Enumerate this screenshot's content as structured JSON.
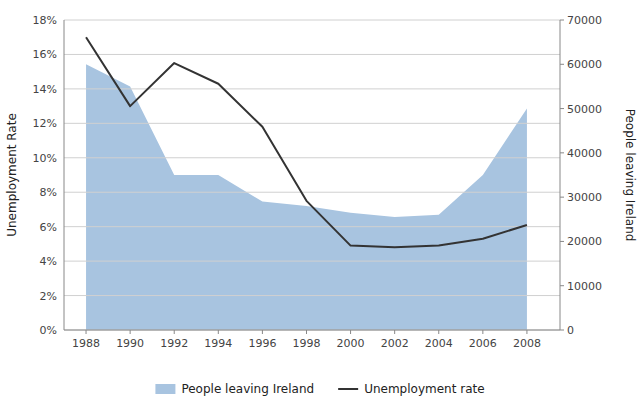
{
  "chart_data": {
    "type": "line",
    "x": [
      1988,
      1990,
      1992,
      1994,
      1996,
      1998,
      2000,
      2002,
      2004,
      2006,
      2008
    ],
    "xlim": [
      1987.0,
      2009.5
    ],
    "xticks": [
      1988,
      1990,
      1992,
      1994,
      1996,
      1998,
      2000,
      2002,
      2004,
      2006,
      2008
    ],
    "ylim": [
      0,
      18
    ],
    "yticks": [
      {
        "value": 0,
        "label": "0%"
      },
      {
        "value": 2,
        "label": "2%"
      },
      {
        "value": 4,
        "label": "4%"
      },
      {
        "value": 6,
        "label": "6%"
      },
      {
        "value": 8,
        "label": "8%"
      },
      {
        "value": 10,
        "label": "10%"
      },
      {
        "value": 12,
        "label": "12%"
      },
      {
        "value": 14,
        "label": "14%"
      },
      {
        "value": 16,
        "label": "16%"
      },
      {
        "value": 18,
        "label": "18%"
      }
    ],
    "y2lim": [
      0,
      70000
    ],
    "y2ticks": [
      0,
      10000,
      20000,
      30000,
      40000,
      50000,
      60000,
      70000
    ],
    "y_label": "Unemployment Rate",
    "y2_label": "People leaving Ireland",
    "grid": true,
    "legend": "bottom",
    "series": [
      {
        "name": "People leaving Ireland",
        "type": "area",
        "axis": "y2",
        "color": "#a8c4e0",
        "values": [
          60000,
          55000,
          35000,
          35000,
          29000,
          28000,
          26500,
          25500,
          26000,
          35000,
          50000
        ]
      },
      {
        "name": "Unemployment rate",
        "type": "line",
        "color": "#333333",
        "values": [
          17.0,
          13.0,
          15.5,
          14.3,
          11.8,
          7.5,
          4.9,
          4.8,
          4.9,
          5.3,
          6.1
        ]
      }
    ]
  }
}
